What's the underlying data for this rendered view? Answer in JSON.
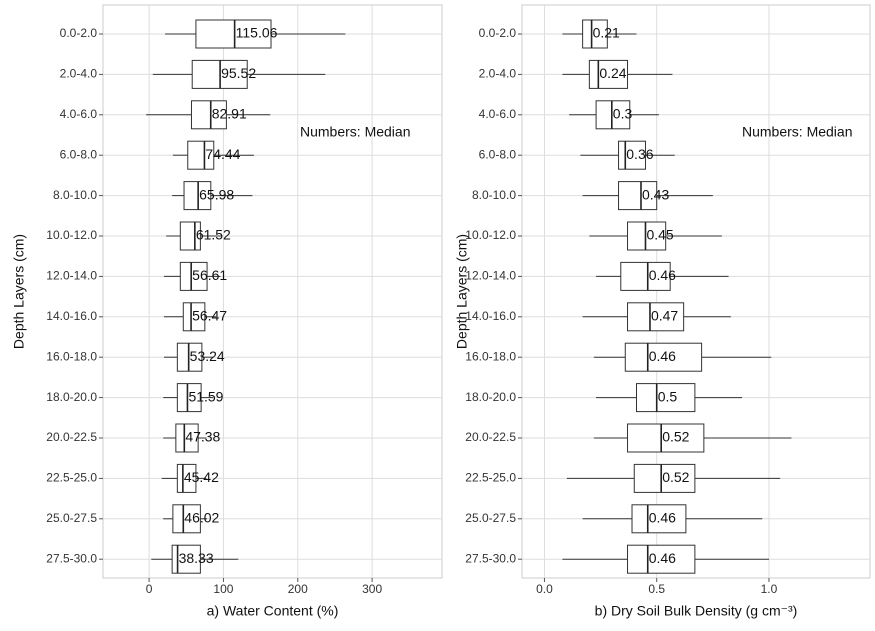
{
  "chart_data": [
    {
      "type": "boxplot",
      "x_label": "a) Water Content (%)",
      "y_label": "Depth Layers (cm)",
      "annotation": "Numbers: Median",
      "categories": [
        "0.0-2.0",
        "2.0-4.0",
        "4.0-6.0",
        "6.0-8.0",
        "8.0-10.0",
        "10.0-12.0",
        "12.0-14.0",
        "14.0-16.0",
        "16.0-18.0",
        "18.0-20.0",
        "20.0-22.5",
        "22.5-25.0",
        "25.0-27.5",
        "27.5-30.0"
      ],
      "min": [
        21.5,
        5,
        -4,
        32,
        31,
        23,
        20,
        20,
        20,
        19,
        19,
        17,
        19,
        3
      ],
      "q1": [
        63,
        58,
        57,
        52,
        47,
        42,
        42,
        46,
        38,
        38,
        36,
        38,
        32,
        31
      ],
      "median": [
        115.06,
        95.52,
        82.91,
        74.44,
        65.98,
        61.52,
        56.61,
        56.47,
        53.24,
        51.59,
        47.38,
        45.42,
        46.02,
        38.33
      ],
      "q3": [
        164,
        132,
        104,
        87,
        83,
        69,
        78,
        75,
        71,
        70,
        66,
        63,
        69,
        69
      ],
      "max": [
        264,
        237,
        163,
        141,
        139,
        97,
        96,
        90,
        86,
        86,
        77,
        77,
        78,
        120
      ],
      "xlim": [
        -62,
        394
      ],
      "xticks": [
        0,
        100,
        200,
        300
      ],
      "grid": true
    },
    {
      "type": "boxplot",
      "x_label": "b) Dry Soil Bulk Density (g cm⁻³)",
      "y_label": "Depth Layers (cm)",
      "annotation": "Numbers: Median",
      "categories": [
        "0.0-2.0",
        "2.0-4.0",
        "4.0-6.0",
        "6.0-8.0",
        "8.0-10.0",
        "10.0-12.0",
        "12.0-14.0",
        "14.0-16.0",
        "16.0-18.0",
        "18.0-20.0",
        "20.0-22.5",
        "22.5-25.0",
        "25.0-27.5",
        "27.5-30.0"
      ],
      "min": [
        0.08,
        0.08,
        0.11,
        0.16,
        0.17,
        0.2,
        0.23,
        0.17,
        0.22,
        0.23,
        0.22,
        0.1,
        0.17,
        0.08
      ],
      "q1": [
        0.17,
        0.2,
        0.23,
        0.33,
        0.33,
        0.37,
        0.34,
        0.37,
        0.36,
        0.41,
        0.37,
        0.4,
        0.39,
        0.37
      ],
      "median": [
        0.21,
        0.24,
        0.3,
        0.36,
        0.43,
        0.45,
        0.46,
        0.47,
        0.46,
        0.5,
        0.52,
        0.52,
        0.46,
        0.46
      ],
      "q3": [
        0.28,
        0.37,
        0.38,
        0.45,
        0.5,
        0.54,
        0.56,
        0.62,
        0.7,
        0.67,
        0.71,
        0.67,
        0.63,
        0.67
      ],
      "max": [
        0.41,
        0.57,
        0.51,
        0.58,
        0.75,
        0.79,
        0.82,
        0.83,
        1.01,
        0.88,
        1.1,
        1.05,
        0.97,
        1.0
      ],
      "xlim": [
        -0.1,
        1.45
      ],
      "xticks": [
        {
          "value": 0,
          "label": "0.0"
        },
        0.5,
        {
          "value": 1,
          "label": "1.0"
        }
      ],
      "grid": true
    }
  ]
}
